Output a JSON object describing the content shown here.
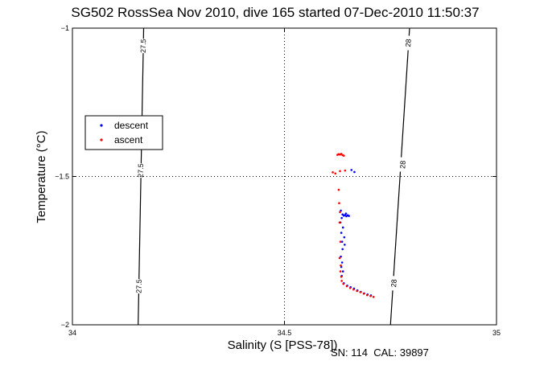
{
  "chart_data": {
    "type": "scatter",
    "title": "SG502 RossSea Nov 2010, dive 165 started 07-Dec-2010 11:50:37",
    "xlabel": "Salinity (S [PSS-78])",
    "ylabel": "Temperature (°C)",
    "xlim": [
      34,
      35
    ],
    "ylim": [
      -2,
      -1
    ],
    "xticks": [
      "34",
      "34.5",
      "35"
    ],
    "yticks": [
      "-1",
      "-1.5",
      "-2"
    ],
    "grid": "dotted at 34.5 and -1.5",
    "legend": {
      "placement": "left"
    },
    "series": [
      {
        "name": "descent",
        "color": "#0000ff",
        "points": [
          [
            34.658,
            -1.478
          ],
          [
            34.665,
            -1.485
          ],
          [
            34.633,
            -1.615
          ],
          [
            34.637,
            -1.628
          ],
          [
            34.64,
            -1.632
          ],
          [
            34.643,
            -1.63
          ],
          [
            34.646,
            -1.634
          ],
          [
            34.649,
            -1.631
          ],
          [
            34.652,
            -1.633
          ],
          [
            34.635,
            -1.64
          ],
          [
            34.645,
            -1.625
          ],
          [
            34.632,
            -1.655
          ],
          [
            34.638,
            -1.672
          ],
          [
            34.634,
            -1.69
          ],
          [
            34.641,
            -1.705
          ],
          [
            34.636,
            -1.72
          ],
          [
            34.642,
            -1.73
          ],
          [
            34.637,
            -1.745
          ],
          [
            34.633,
            -1.77
          ],
          [
            34.636,
            -1.79
          ],
          [
            34.634,
            -1.805
          ],
          [
            34.638,
            -1.82
          ],
          [
            34.635,
            -1.835
          ],
          [
            34.64,
            -1.86
          ],
          [
            34.648,
            -1.868
          ],
          [
            34.656,
            -1.873
          ],
          [
            34.664,
            -1.878
          ],
          [
            34.672,
            -1.884
          ],
          [
            34.68,
            -1.889
          ],
          [
            34.688,
            -1.894
          ],
          [
            34.696,
            -1.898
          ],
          [
            34.704,
            -1.901
          ]
        ]
      },
      {
        "name": "ascent",
        "color": "#ff0000",
        "points": [
          [
            34.625,
            -1.427
          ],
          [
            34.628,
            -1.425
          ],
          [
            34.631,
            -1.426
          ],
          [
            34.634,
            -1.424
          ],
          [
            34.637,
            -1.428
          ],
          [
            34.64,
            -1.43
          ],
          [
            34.614,
            -1.486
          ],
          [
            34.62,
            -1.49
          ],
          [
            34.631,
            -1.482
          ],
          [
            34.643,
            -1.48
          ],
          [
            34.628,
            -1.545
          ],
          [
            34.629,
            -1.59
          ],
          [
            34.631,
            -1.62
          ],
          [
            34.63,
            -1.655
          ],
          [
            34.632,
            -1.72
          ],
          [
            34.63,
            -1.775
          ],
          [
            34.633,
            -1.8
          ],
          [
            34.632,
            -1.82
          ],
          [
            34.634,
            -1.838
          ],
          [
            34.635,
            -1.852
          ],
          [
            34.639,
            -1.862
          ],
          [
            34.647,
            -1.87
          ],
          [
            34.655,
            -1.876
          ],
          [
            34.663,
            -1.881
          ],
          [
            34.671,
            -1.886
          ],
          [
            34.679,
            -1.89
          ],
          [
            34.687,
            -1.895
          ],
          [
            34.695,
            -1.9
          ],
          [
            34.703,
            -1.903
          ],
          [
            34.71,
            -1.906
          ]
        ]
      }
    ],
    "contours": [
      {
        "label": "27.5",
        "from": [
          34.168,
          -1
        ],
        "to": [
          34.155,
          -2
        ],
        "label_positions": [
          [
            34.167,
            -1.06
          ],
          [
            34.161,
            -1.48
          ],
          [
            34.157,
            -1.87
          ]
        ]
      },
      {
        "label": "28",
        "from": [
          34.795,
          -1
        ],
        "to": [
          34.75,
          -2
        ],
        "label_positions": [
          [
            34.792,
            -1.05
          ],
          [
            34.779,
            -1.46
          ],
          [
            34.758,
            -1.86
          ]
        ]
      }
    ]
  },
  "footer": {
    "text": "SN: 114  CAL: 39897"
  }
}
